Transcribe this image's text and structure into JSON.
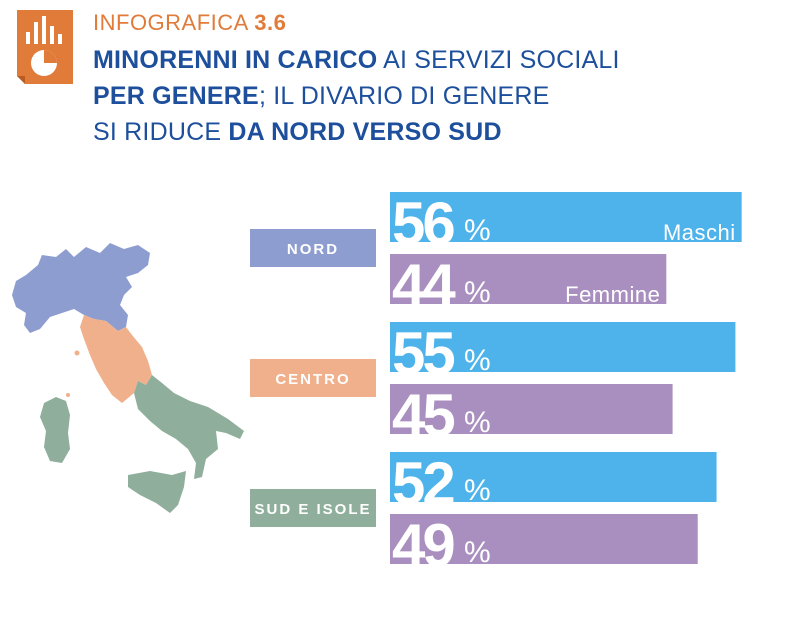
{
  "header": {
    "kicker_label": "INFOGRAFICA",
    "kicker_number": "3.6",
    "line1_bold": "MINORENNI IN CARICO",
    "line1_regular": " AI SERVIZI SOCIALI",
    "line2_bold": "PER GENERE",
    "line2_regular": "; IL DIVARIO DI GENERE",
    "line3_regular": "SI RIDUCE ",
    "line3_bold": "DA NORD VERSO SUD"
  },
  "logo": {
    "icon": "chart-document-icon",
    "color": "#e07b39"
  },
  "map": {
    "icon": "italy-map-icon",
    "colors": {
      "nord": "#8e9dcf",
      "centro": "#f0b08b",
      "sud": "#8fae9b"
    }
  },
  "chart_data": {
    "type": "bar",
    "orientation": "horizontal",
    "categories": [
      "NORD",
      "CENTRO",
      "SUD E ISOLE"
    ],
    "series": [
      {
        "name": "Maschi",
        "values": [
          56,
          55,
          52
        ],
        "color": "#4db3ea"
      },
      {
        "name": "Femmine",
        "values": [
          44,
          45,
          49
        ],
        "color": "#a98fbf"
      }
    ],
    "unit": "%",
    "category_colors": [
      "#8e9dcf",
      "#f0b08b",
      "#8fae9b"
    ],
    "xlim": [
      0,
      100
    ]
  }
}
